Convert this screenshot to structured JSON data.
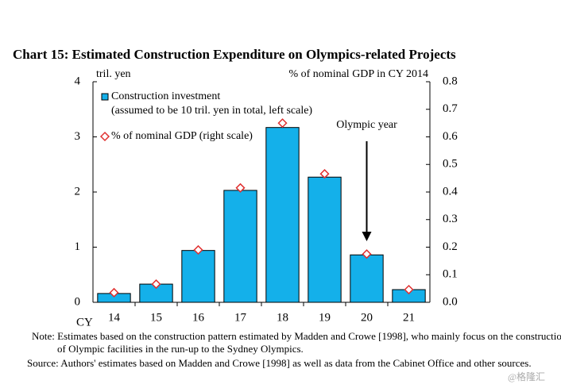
{
  "chart_data": {
    "type": "bar",
    "title": "Chart 15: Estimated Construction Expenditure on Olympics-related Projects",
    "y_label": "tril. yen",
    "y2_label": "% of nominal GDP in CY 2014",
    "x_label": "CY",
    "categories": [
      "14",
      "15",
      "16",
      "17",
      "18",
      "19",
      "20",
      "21"
    ],
    "series": [
      {
        "name": "Construction investment",
        "legend_note": "(assumed to be 10 tril. yen in total, left scale)",
        "mark": "bar",
        "color": "#14b0ea",
        "values": [
          0.16,
          0.33,
          0.94,
          2.03,
          3.17,
          2.27,
          0.86,
          0.23
        ]
      },
      {
        "name": "% of nominal GDP (right scale)",
        "mark": "diamond",
        "color": "#e0302f",
        "axis": "y2",
        "values": [
          0.035,
          0.066,
          0.19,
          0.415,
          0.65,
          0.466,
          0.175,
          0.046
        ]
      }
    ],
    "ylim": [
      0,
      4
    ],
    "yticks": [
      0,
      1,
      2,
      3,
      4
    ],
    "y2lim": [
      0,
      0.8
    ],
    "y2ticks": [
      {
        "value": 0,
        "label": "0.0"
      },
      0.1,
      0.2,
      0.3,
      0.4,
      0.5,
      0.6,
      0.7,
      0.8
    ],
    "annotation": {
      "text": "Olympic year",
      "category": 6
    },
    "notes": [
      "Note: Estimates based on the construction pattern estimated by Madden and Crowe [1998], who mainly focus on the construction of Olympic facilities in the run-up to the Sydney Olympics.",
      "Source: Authors' estimates based on Madden and Crowe [1998] as well as data from the Cabinet Office and other sources."
    ],
    "watermark": "@格隆汇"
  }
}
